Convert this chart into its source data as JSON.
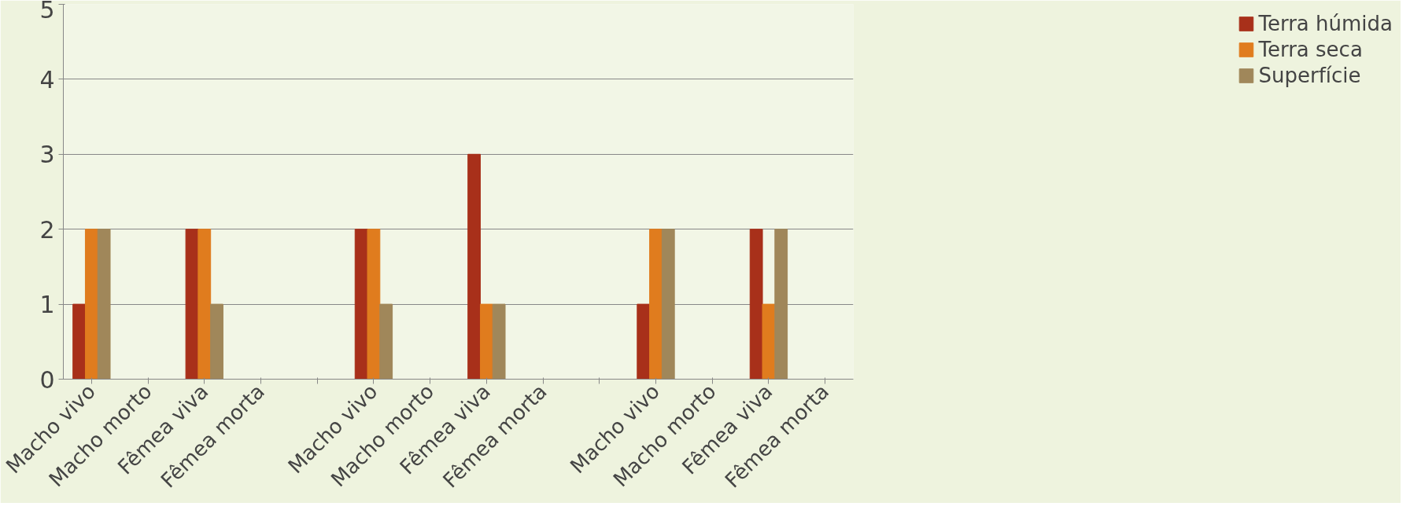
{
  "chart_data": {
    "type": "bar",
    "categories": [
      "Macho vivo",
      "Macho morto",
      "Fêmea viva",
      "Fêmea morta",
      null,
      "Macho vivo",
      "Macho morto",
      "Fêmea viva",
      "Fêmea morta",
      null,
      "Macho vivo",
      "Macho morto",
      "Fêmea viva",
      "Fêmea morta"
    ],
    "series": [
      {
        "name": "Terra húmida",
        "color": "#a8301a",
        "values": [
          1,
          0,
          2,
          0,
          null,
          2,
          0,
          3,
          0,
          null,
          1,
          0,
          2,
          0
        ]
      },
      {
        "name": "Terra seca",
        "color": "#e07c1e",
        "values": [
          2,
          0,
          2,
          0,
          null,
          2,
          0,
          1,
          0,
          null,
          2,
          0,
          1,
          0
        ]
      },
      {
        "name": "Superfície",
        "color": "#a0875a",
        "values": [
          2,
          0,
          1,
          0,
          null,
          1,
          0,
          1,
          0,
          null,
          2,
          0,
          2,
          0
        ]
      }
    ],
    "ylim": [
      0,
      5
    ],
    "yticks": [
      0,
      1,
      2,
      3,
      4,
      5
    ],
    "grid": "y",
    "legend": "right"
  }
}
